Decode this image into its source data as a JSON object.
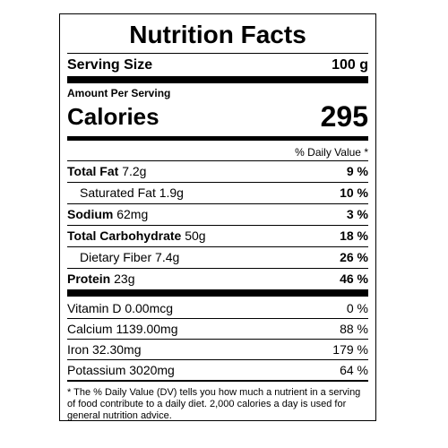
{
  "title": "Nutrition Facts",
  "serving": {
    "label": "Serving Size",
    "value": "100 g"
  },
  "amount_per_serving": "Amount Per Serving",
  "calories": {
    "label": "Calories",
    "value": 295
  },
  "daily_value_header": "% Daily Value *",
  "nutrients": [
    {
      "name": "Total Fat",
      "amount": "7.2g",
      "dv": "9 %",
      "sub": [
        {
          "name": "Saturated Fat",
          "amount": "1.9g",
          "dv": "10 %"
        }
      ]
    },
    {
      "name": "Sodium",
      "amount": "62mg",
      "dv": "3 %",
      "sub": []
    },
    {
      "name": "Total Carbohydrate",
      "amount": "50g",
      "dv": "18 %",
      "sub": [
        {
          "name": "Dietary Fiber",
          "amount": "7.4g",
          "dv": "26 %"
        }
      ]
    },
    {
      "name": "Protein",
      "amount": "23g",
      "dv": "46 %",
      "sub": []
    }
  ],
  "vitamins": [
    {
      "name": "Vitamin D",
      "amount": "0.00mcg",
      "dv": "0 %"
    },
    {
      "name": "Calcium",
      "amount": "1139.00mg",
      "dv": "88 %"
    },
    {
      "name": "Iron",
      "amount": "32.30mg",
      "dv": "179 %"
    },
    {
      "name": "Potassium",
      "amount": "3020mg",
      "dv": "64 %"
    }
  ],
  "footnote": "* The % Daily Value (DV) tells you how much a nutrient in a serving of food contribute to a daily diet. 2,000 calories a day is used for general nutrition advice."
}
